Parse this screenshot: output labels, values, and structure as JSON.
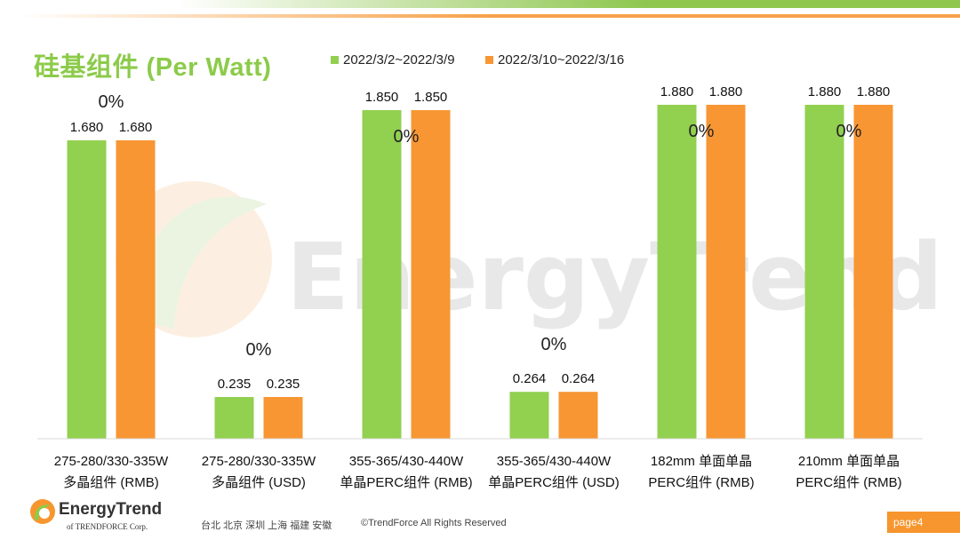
{
  "header": {
    "title": "硅基组件 (Per Watt)"
  },
  "colors": {
    "green": "#92d050",
    "orange": "#f79633",
    "title_green": "#8ccb4a",
    "accent_orange": "#f7962e"
  },
  "watermark": {
    "text": "EnergyTrend"
  },
  "chart_data": {
    "type": "bar",
    "title": "硅基组件 (Per Watt)",
    "categories": [
      [
        "275-280/330-335W",
        "多晶组件 (RMB)"
      ],
      [
        "275-280/330-335W",
        "多晶组件 (USD)"
      ],
      [
        "355-365/430-440W",
        "单晶PERC组件 (RMB)"
      ],
      [
        "355-365/430-440W",
        "单晶PERC组件 (USD)"
      ],
      [
        "182mm 单面单晶",
        "PERC组件 (RMB)"
      ],
      [
        "210mm 单面单晶",
        "PERC组件 (RMB)"
      ]
    ],
    "series": [
      {
        "name": "2022/3/2~2022/3/9",
        "color": "#92d050",
        "values": [
          1.68,
          0.235,
          1.85,
          0.264,
          1.88,
          1.88
        ],
        "labels": [
          "1.680",
          "0.235",
          "1.850",
          "0.264",
          "1.880",
          "1.880"
        ]
      },
      {
        "name": "2022/3/10~2022/3/16",
        "color": "#f79633",
        "values": [
          1.68,
          0.235,
          1.85,
          0.264,
          1.88,
          1.88
        ],
        "labels": [
          "1.680",
          "0.235",
          "1.850",
          "0.264",
          "1.880",
          "1.880"
        ]
      }
    ],
    "change_labels": [
      "0%",
      "0%",
      "0%",
      "0%",
      "0%",
      "0%"
    ],
    "legend_position": "top",
    "grid": false
  },
  "footer": {
    "logo_text": "EnergyTrend",
    "logo_sub": "of TRENDFORCE Corp.",
    "cities": "台北  北京  深圳  上海  福建  安徽",
    "copyright": "©TrendForce All Rights Reserved",
    "page": "page4"
  }
}
